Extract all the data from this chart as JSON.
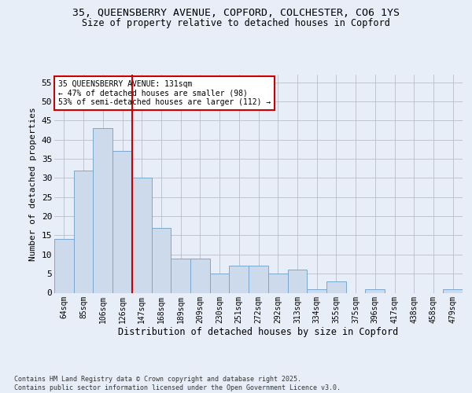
{
  "title_line1": "35, QUEENSBERRY AVENUE, COPFORD, COLCHESTER, CO6 1YS",
  "title_line2": "Size of property relative to detached houses in Copford",
  "xlabel": "Distribution of detached houses by size in Copford",
  "ylabel": "Number of detached properties",
  "categories": [
    "64sqm",
    "85sqm",
    "106sqm",
    "126sqm",
    "147sqm",
    "168sqm",
    "189sqm",
    "209sqm",
    "230sqm",
    "251sqm",
    "272sqm",
    "292sqm",
    "313sqm",
    "334sqm",
    "355sqm",
    "375sqm",
    "396sqm",
    "417sqm",
    "438sqm",
    "458sqm",
    "479sqm"
  ],
  "values": [
    14,
    32,
    43,
    37,
    30,
    17,
    9,
    9,
    5,
    7,
    7,
    5,
    6,
    1,
    3,
    0,
    1,
    0,
    0,
    0,
    1
  ],
  "bar_color": "#ccdaeb",
  "bar_edge_color": "#7aa8cc",
  "vline_index": 3.5,
  "vline_color": "#cc0000",
  "ylim": [
    0,
    57
  ],
  "yticks": [
    0,
    5,
    10,
    15,
    20,
    25,
    30,
    35,
    40,
    45,
    50,
    55
  ],
  "annotation_text": "35 QUEENSBERRY AVENUE: 131sqm\n← 47% of detached houses are smaller (98)\n53% of semi-detached houses are larger (112) →",
  "annotation_box_color": "#ffffff",
  "annotation_box_edge": "#cc0000",
  "footer_text": "Contains HM Land Registry data © Crown copyright and database right 2025.\nContains public sector information licensed under the Open Government Licence v3.0.",
  "background_color": "#e8eef8",
  "grid_color": "#bbbbcc"
}
